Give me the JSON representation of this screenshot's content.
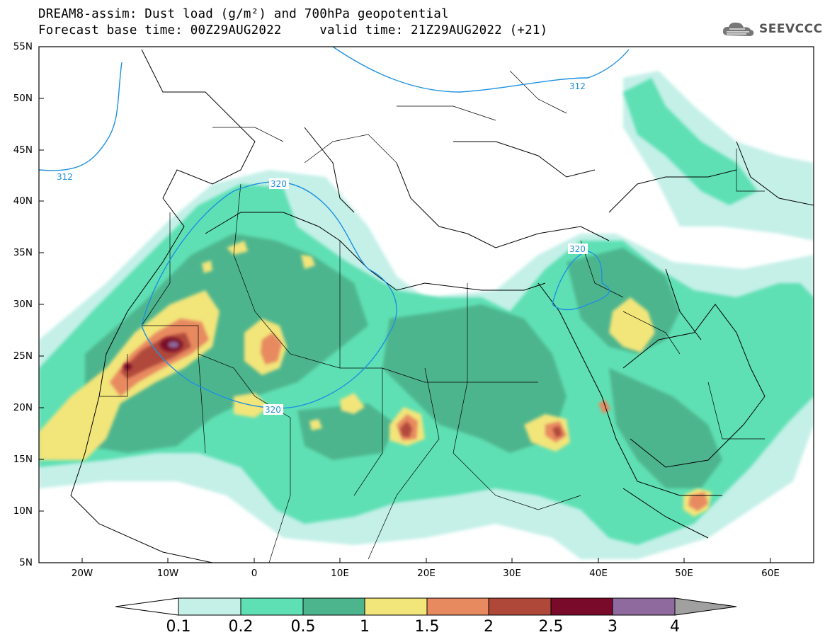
{
  "header": {
    "title_line1": "DREAM8-assim: Dust load (g/m²) and 700hPa geopotential",
    "title_line2": "Forecast base time: 00Z29AUG2022     valid time: 21Z29AUG2022 (+21)",
    "logo_text": "SEEVCCC",
    "logo_icon": "cloud-icon"
  },
  "map": {
    "lat_labels": [
      "55N",
      "50N",
      "45N",
      "40N",
      "35N",
      "30N",
      "25N",
      "20N",
      "15N",
      "10N",
      "5N"
    ],
    "lon_labels": [
      "20W",
      "10W",
      "0",
      "10E",
      "20E",
      "30E",
      "40E",
      "50E",
      "60E"
    ],
    "contour_labels": [
      "312",
      "312",
      "320",
      "320",
      "320"
    ],
    "extent": {
      "lon_min": -25,
      "lon_max": 65,
      "lat_min": 5,
      "lat_max": 55
    }
  },
  "colorbar": {
    "tick_labels": [
      "0.1",
      "0.2",
      "0.5",
      "1",
      "1.5",
      "2",
      "2.5",
      "3",
      "4"
    ],
    "colors": [
      "#c4f0e8",
      "#5fe0b4",
      "#4db58e",
      "#f2e57a",
      "#e88a60",
      "#b0483a",
      "#7a0a2a",
      "#8e6a9e",
      "#a0a0a0"
    ]
  }
}
